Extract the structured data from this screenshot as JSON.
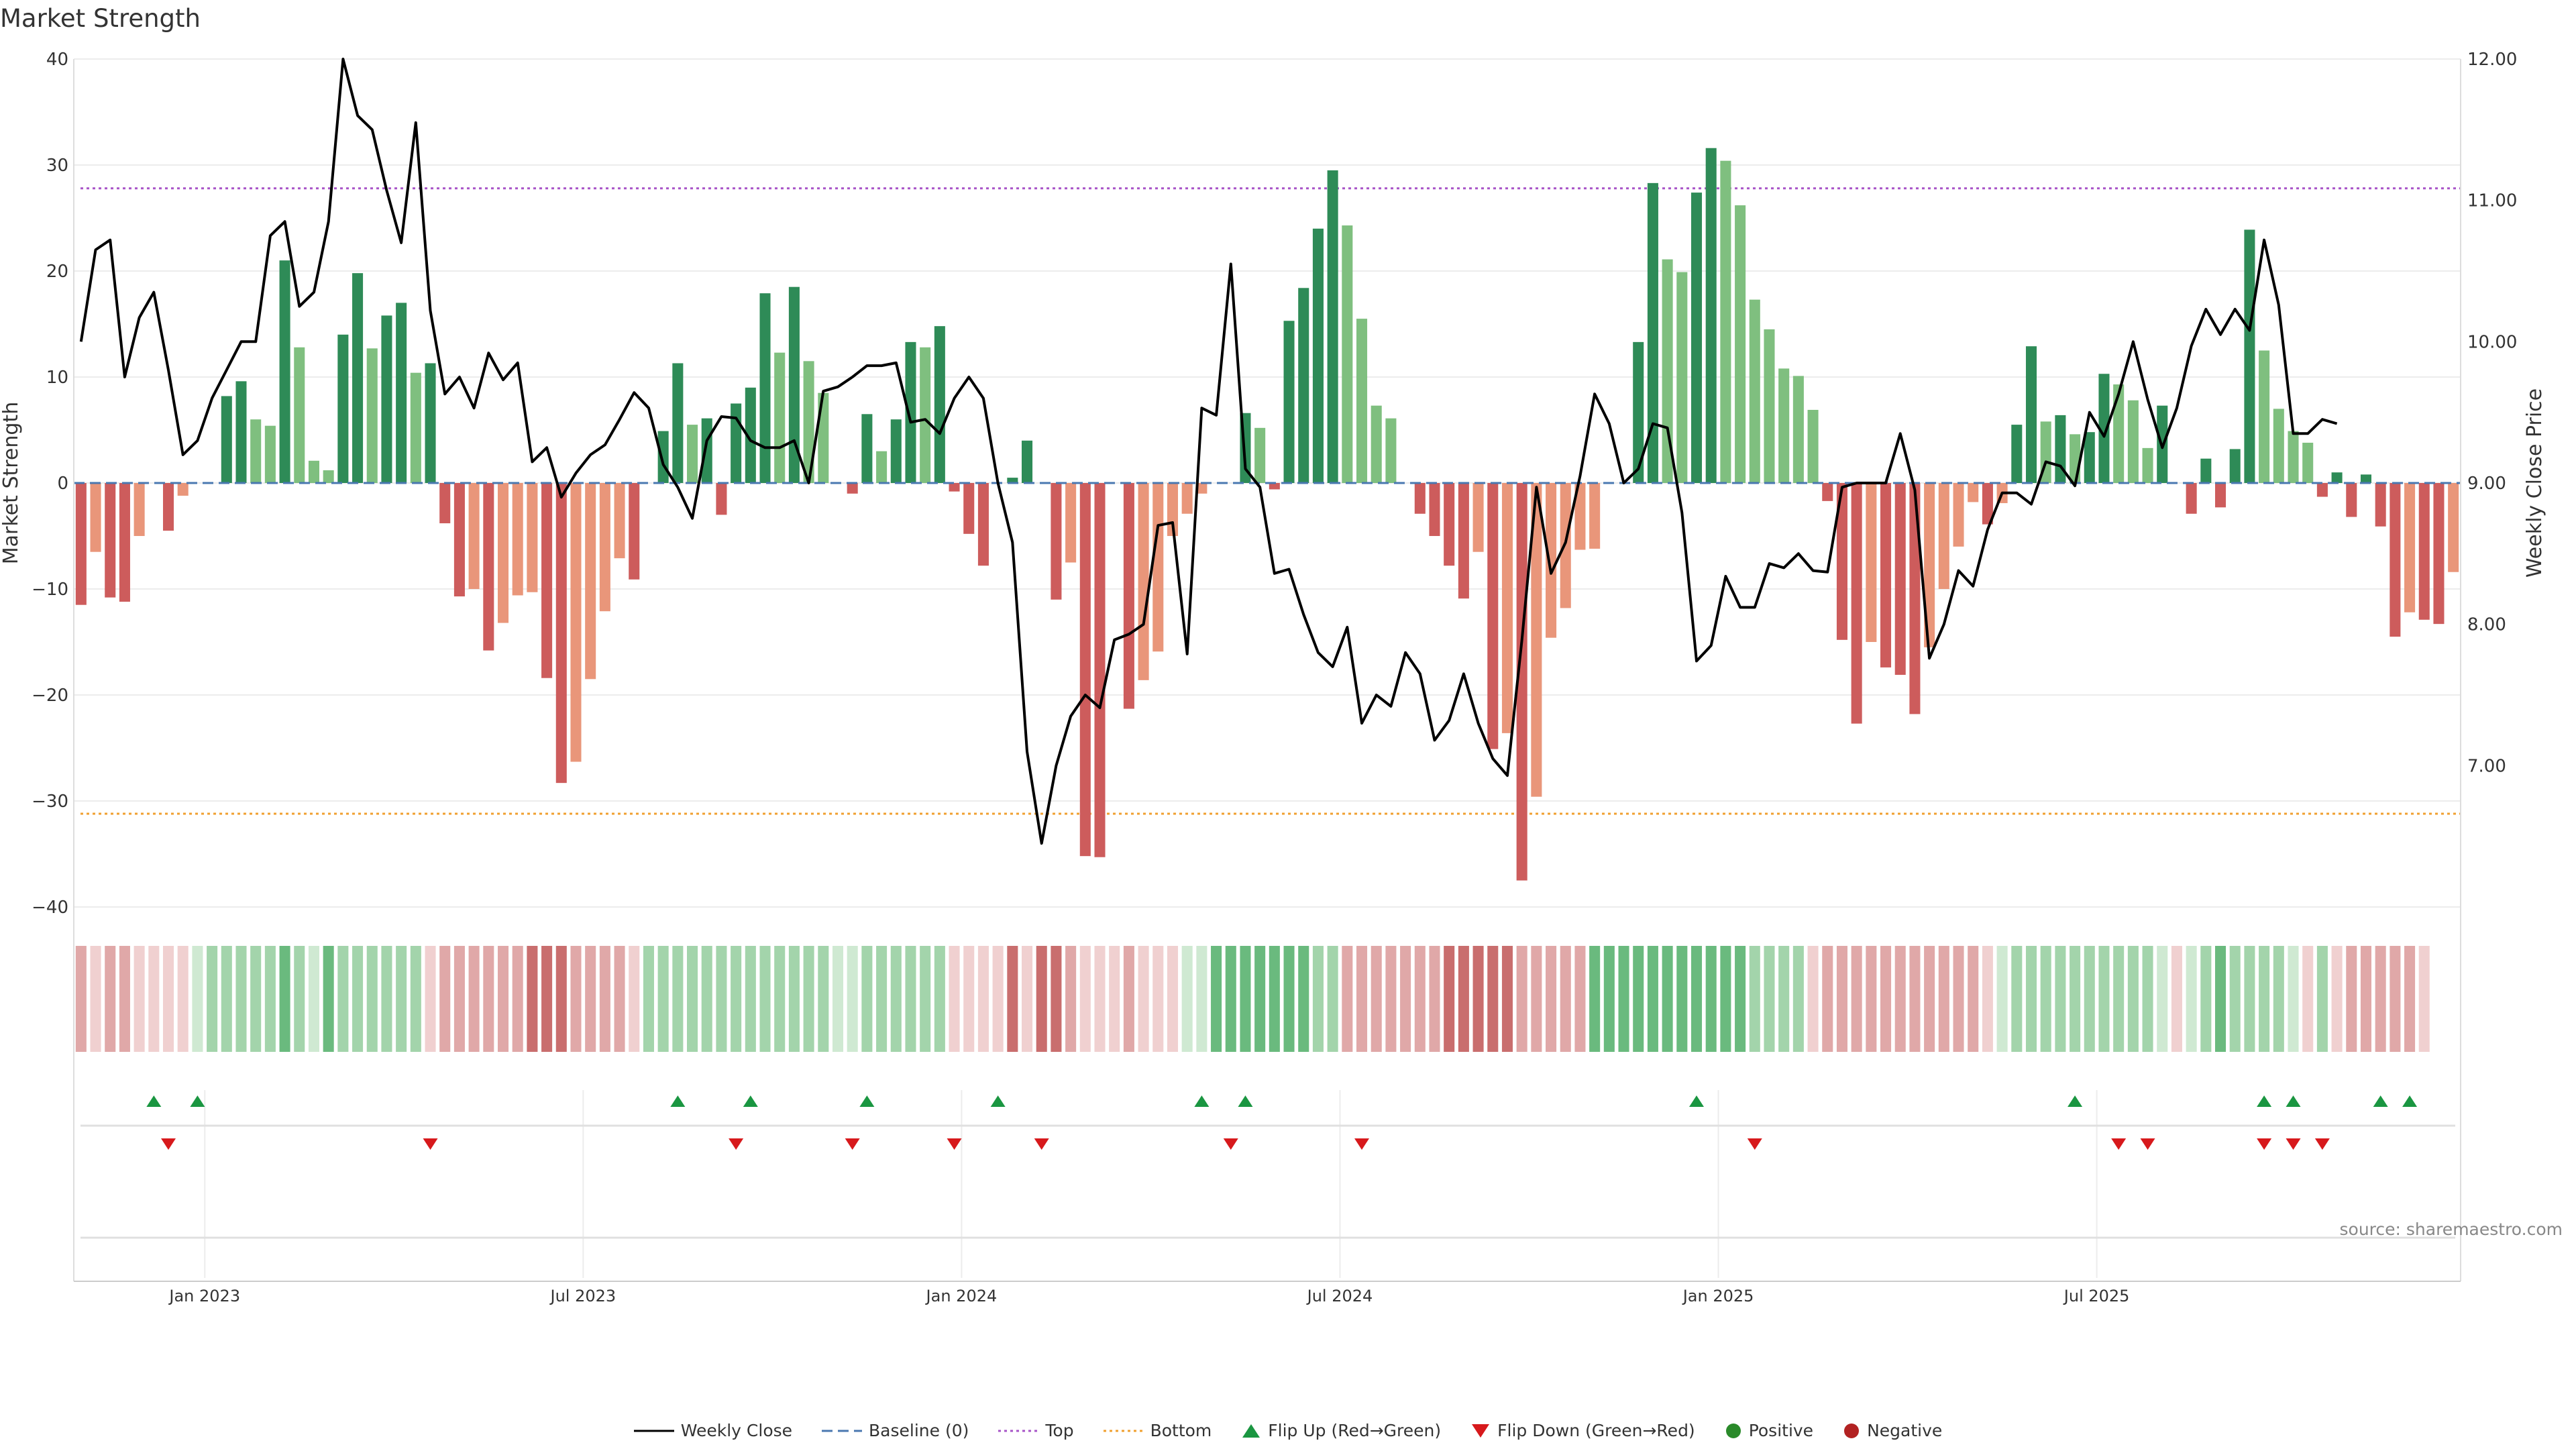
{
  "title": "Market Strength",
  "source": "source: sharemaestro.com",
  "legend": {
    "weekly_close": "Weekly Close",
    "baseline": "Baseline (0)",
    "top": "Top",
    "bottom": "Bottom",
    "flip_up": "Flip Up (Red→Green)",
    "flip_down": "Flip Down (Green→Red)",
    "positive": "Positive",
    "negative": "Negative"
  },
  "colors": {
    "pos_strong": "#2e8b57",
    "pos_weak": "#7fbf7f",
    "neg_strong": "#cd5c5c",
    "neg_weak": "#e9967a",
    "line": "#000000",
    "top": "#a855c8",
    "bottom": "#f0a030",
    "baseline": "#4a78b0",
    "flip_up": "#1a9641",
    "flip_down": "#d7191c",
    "positive_dot": "#2a8a2a",
    "negative_dot": "#b22222"
  },
  "chart_data": {
    "type": "bar",
    "x_start": "2022-10-31",
    "x_step": "7 days",
    "ylabel_left": "Market Strength",
    "ylabel_right": "Weekly Close Price",
    "ylim_left": [
      -40,
      40
    ],
    "yticks_left": [
      "40",
      "30",
      "20",
      "10",
      "0",
      "−10",
      "−20",
      "−30",
      "−40"
    ],
    "ylim_right": [
      6.0,
      12.0
    ],
    "yticks_right": [
      "12.00",
      "11.00",
      "10.00",
      "9.00",
      "8.00",
      "7.00"
    ],
    "xticks": [
      {
        "label": "Jan 2023",
        "week": 9
      },
      {
        "label": "Jul 2023",
        "week": 35
      },
      {
        "label": "Jan 2024",
        "week": 61
      },
      {
        "label": "Jul 2024",
        "week": 87
      },
      {
        "label": "Jan 2025",
        "week": 113
      },
      {
        "label": "Jul 2025",
        "week": 139
      }
    ],
    "top_threshold": 27.8,
    "bottom_threshold": -31.2,
    "strength": [
      -11.5,
      -6.5,
      -10.8,
      -11.2,
      -5,
      0,
      -4.5,
      -1.2,
      0,
      0,
      8.2,
      9.6,
      6,
      5.4,
      21,
      12.8,
      2.1,
      1.2,
      14,
      19.8,
      12.7,
      15.8,
      17,
      10.4,
      11.3,
      -3.8,
      -10.7,
      -10,
      -15.8,
      -13.2,
      -10.6,
      -10.3,
      -18.4,
      -28.3,
      -26.3,
      -18.5,
      -12.1,
      -7.1,
      -9.1,
      0,
      4.9,
      11.3,
      5.5,
      6.1,
      -3,
      7.5,
      9,
      17.9,
      12.3,
      18.5,
      11.5,
      8.5,
      0,
      -1,
      6.5,
      3,
      6,
      13.3,
      12.8,
      14.8,
      -0.8,
      -4.8,
      -7.8,
      0,
      0.5,
      4,
      0,
      -11,
      -7.5,
      -35.2,
      -35.3,
      0,
      -21.3,
      -18.6,
      -15.9,
      -5,
      -2.9,
      -1,
      0,
      0,
      6.6,
      5.2,
      -0.6,
      15.3,
      18.4,
      24,
      29.5,
      24.3,
      15.5,
      7.3,
      6.1,
      0,
      -2.9,
      -5,
      -7.8,
      -10.9,
      -6.5,
      -25.1,
      -23.6,
      -37.5,
      -29.6,
      -14.6,
      -11.8,
      -6.3,
      -6.2,
      0,
      0,
      13.3,
      28.3,
      21.1,
      19.9,
      27.4,
      31.6,
      30.4,
      26.2,
      17.3,
      14.5,
      10.8,
      10.1,
      6.9,
      -1.7,
      -14.8,
      -22.7,
      -15,
      -17.4,
      -18.1,
      -21.8,
      -15.5,
      -10,
      -6,
      -1.8,
      -3.9,
      -1.9,
      5.5,
      12.9,
      5.8,
      6.4,
      4.6,
      4.8,
      10.3,
      9.3,
      7.8,
      3.3,
      7.3,
      0,
      -2.9,
      2.3,
      -2.3,
      3.2,
      23.9,
      12.5,
      7,
      4.9,
      3.8,
      -1.3,
      1,
      -3.2,
      0.8,
      -4.1,
      -14.5,
      -12.2,
      -12.9,
      -13.3,
      -8.4
    ],
    "close": [
      10.0,
      10.65,
      10.72,
      9.75,
      10.17,
      10.35,
      9.8,
      9.2,
      9.3,
      9.6,
      9.8,
      10.0,
      10.0,
      10.75,
      10.85,
      10.25,
      10.35,
      10.85,
      12.0,
      11.6,
      11.5,
      11.07,
      10.7,
      11.55,
      10.22,
      9.63,
      9.75,
      9.53,
      9.92,
      9.73,
      9.85,
      9.15,
      9.25,
      8.9,
      9.07,
      9.2,
      9.27,
      9.45,
      9.64,
      9.53,
      9.13,
      8.97,
      8.75,
      9.3,
      9.47,
      9.46,
      9.3,
      9.25,
      9.25,
      9.3,
      9.0,
      9.65,
      9.68,
      9.75,
      9.83,
      9.83,
      9.85,
      9.43,
      9.45,
      9.35,
      9.6,
      9.75,
      9.6,
      9.0,
      8.58,
      7.1,
      6.45,
      7.0,
      7.35,
      7.5,
      7.41,
      7.89,
      7.93,
      8.0,
      8.7,
      8.72,
      7.79,
      9.53,
      9.48,
      10.55,
      9.1,
      8.97,
      8.36,
      8.39,
      8.07,
      7.8,
      7.7,
      7.98,
      7.3,
      7.5,
      7.42,
      7.8,
      7.65,
      7.18,
      7.32,
      7.65,
      7.3,
      7.05,
      6.93,
      7.89,
      8.97,
      8.36,
      8.58,
      9.05,
      9.63,
      9.42,
      9.0,
      9.1,
      9.42,
      9.39,
      8.79,
      7.74,
      7.85,
      8.34,
      8.12,
      8.12,
      8.43,
      8.4,
      8.5,
      8.38,
      8.37,
      8.97,
      9.0,
      9.0,
      9.0,
      9.35,
      8.95,
      7.76,
      8.0,
      8.38,
      8.27,
      8.67,
      8.93,
      8.93,
      8.85,
      9.15,
      9.12,
      8.98,
      9.5,
      9.33,
      9.63,
      10.0,
      9.59,
      9.25,
      9.53,
      9.97,
      10.23,
      10.05,
      10.23,
      10.08,
      10.72,
      10.26,
      9.35,
      9.35,
      9.45,
      9.42
    ],
    "heat_levels": [
      -2,
      -1,
      -2,
      -2,
      -1,
      -1,
      -1,
      -1,
      1,
      2,
      2,
      2,
      2,
      2,
      3,
      2,
      1,
      3,
      2,
      2,
      2,
      2,
      2,
      2,
      -1,
      -2,
      -2,
      -2,
      -2,
      -2,
      -2,
      -3,
      -3,
      -3,
      -2,
      -2,
      -2,
      -2,
      -1,
      2,
      2,
      2,
      2,
      2,
      2,
      2,
      2,
      2,
      2,
      2,
      2,
      2,
      1,
      1,
      2,
      2,
      2,
      2,
      2,
      2,
      -1,
      -1,
      -1,
      -1,
      -3,
      -1,
      -3,
      -3,
      -2,
      -1,
      -1,
      -1,
      -2,
      -1,
      -1,
      -1,
      1,
      1,
      3,
      3,
      3,
      3,
      3,
      3,
      3,
      2,
      2,
      -2,
      -2,
      -2,
      -2,
      -2,
      -2,
      -2,
      -3,
      -3,
      -3,
      -3,
      -3,
      -2,
      -2,
      -2,
      -2,
      -2,
      3,
      3,
      3,
      3,
      3,
      3,
      3,
      3,
      3,
      3,
      3,
      2,
      2,
      2,
      2,
      -1,
      -2,
      -2,
      -2,
      -2,
      -2,
      -2,
      -2,
      -2,
      -2,
      -2,
      -2,
      -1,
      1,
      2,
      2,
      2,
      2,
      2,
      2,
      2,
      2,
      2,
      2,
      1,
      -1,
      1,
      2,
      3,
      2,
      2,
      2,
      2,
      1,
      -1,
      2,
      -1,
      -2,
      -2,
      -2,
      -2,
      -2,
      -1
    ],
    "flip_up_weeks": [
      5,
      8,
      41,
      46,
      54,
      63,
      77,
      80,
      111,
      137,
      150,
      152,
      158,
      160
    ],
    "flip_down_weeks": [
      6,
      24,
      45,
      53,
      60,
      66,
      79,
      88,
      115,
      140,
      142,
      150,
      152,
      154
    ]
  }
}
